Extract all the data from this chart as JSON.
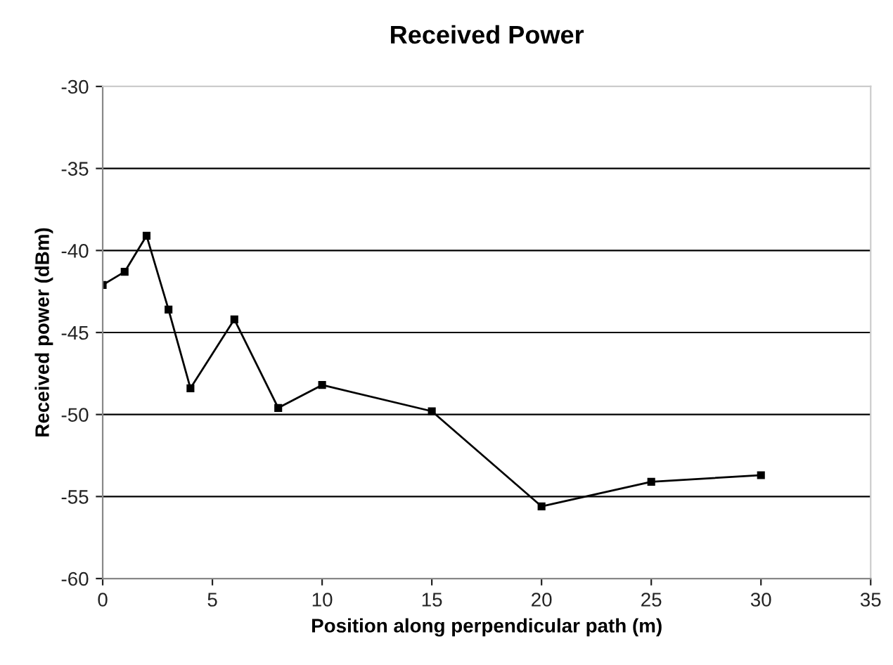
{
  "chart_data": {
    "type": "line",
    "title": "Received Power",
    "xlabel": "Position along perpendicular path (m)",
    "ylabel": "Received power (dBm)",
    "x": [
      0,
      1,
      2,
      3,
      4,
      6,
      8,
      10,
      15,
      20,
      25,
      30
    ],
    "series": [
      {
        "color": "#000000",
        "values": [
          -42.1,
          -41.3,
          -39.1,
          -43.6,
          -48.4,
          -44.2,
          -49.6,
          -48.2,
          -49.8,
          -55.6,
          -54.1,
          -53.7
        ]
      }
    ],
    "xlim": [
      0,
      35
    ],
    "xticks": [
      0,
      5,
      10,
      15,
      20,
      25,
      30,
      35
    ],
    "ylim": [
      -60,
      -30
    ],
    "yticks": [
      -60,
      -55,
      -50,
      -45,
      -40,
      -35,
      -30
    ],
    "grid": "y",
    "marker": "square",
    "line_style": "solid",
    "legend": false
  }
}
